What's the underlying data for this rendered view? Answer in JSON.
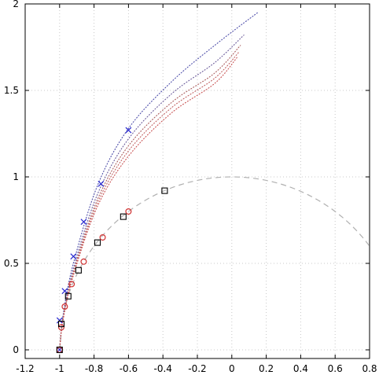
{
  "chart_data": {
    "type": "scatter",
    "title": "",
    "xlabel": "",
    "ylabel": "",
    "xlim": [
      -1.2,
      0.8
    ],
    "ylim": [
      -0.05,
      2.0
    ],
    "grid": true,
    "legend": "none",
    "x_ticks": [
      "-1.2",
      "-1",
      "-0.8",
      "-0.6",
      "-0.4",
      "-0.2",
      "0",
      "0.2",
      "0.4",
      "0.6",
      "0.8"
    ],
    "x_tick_values": [
      -1.2,
      -1.0,
      -0.8,
      -0.6,
      -0.4,
      -0.2,
      0,
      0.2,
      0.4,
      0.6,
      0.8
    ],
    "y_ticks": [
      "0",
      "0.5",
      "1",
      "1.5",
      "2"
    ],
    "y_tick_values": [
      0,
      0.5,
      1.0,
      1.5,
      2.0
    ],
    "reference_curve": {
      "kind": "semicircle",
      "center": [
        0,
        0
      ],
      "radius": 1,
      "x_from": -1.0,
      "x_to": 0.8,
      "color": "#b0b0b0",
      "style": "dashed"
    },
    "fan_curves": [
      {
        "color": "#4a4aa8",
        "points": [
          [
            -1,
            0
          ],
          [
            -0.98,
            0.2
          ],
          [
            -0.92,
            0.5
          ],
          [
            -0.78,
            0.95
          ],
          [
            -0.6,
            1.28
          ],
          [
            -0.35,
            1.55
          ],
          [
            -0.1,
            1.76
          ],
          [
            0.15,
            1.95
          ]
        ]
      },
      {
        "color": "#6a5a9a",
        "points": [
          [
            -1,
            0
          ],
          [
            -0.98,
            0.19
          ],
          [
            -0.92,
            0.47
          ],
          [
            -0.78,
            0.9
          ],
          [
            -0.6,
            1.22
          ],
          [
            -0.35,
            1.48
          ],
          [
            -0.1,
            1.66
          ],
          [
            0.07,
            1.82
          ]
        ]
      },
      {
        "color": "#a85a5a",
        "points": [
          [
            -1,
            0
          ],
          [
            -0.98,
            0.18
          ],
          [
            -0.92,
            0.45
          ],
          [
            -0.78,
            0.87
          ],
          [
            -0.6,
            1.18
          ],
          [
            -0.35,
            1.43
          ],
          [
            -0.1,
            1.6
          ],
          [
            0.05,
            1.76
          ]
        ]
      },
      {
        "color": "#c06060",
        "points": [
          [
            -1,
            0
          ],
          [
            -0.98,
            0.18
          ],
          [
            -0.92,
            0.44
          ],
          [
            -0.78,
            0.85
          ],
          [
            -0.6,
            1.15
          ],
          [
            -0.35,
            1.4
          ],
          [
            -0.1,
            1.57
          ],
          [
            0.04,
            1.72
          ]
        ]
      },
      {
        "color": "#c85050",
        "points": [
          [
            -1,
            0
          ],
          [
            -0.98,
            0.17
          ],
          [
            -0.92,
            0.43
          ],
          [
            -0.78,
            0.83
          ],
          [
            -0.6,
            1.12
          ],
          [
            -0.35,
            1.37
          ],
          [
            -0.1,
            1.54
          ],
          [
            0.03,
            1.69
          ]
        ]
      }
    ],
    "series": [
      {
        "marker": "cross",
        "color": "#2a2ad0",
        "points": [
          [
            -1,
            0
          ],
          [
            -1,
            0.17
          ],
          [
            -0.97,
            0.34
          ],
          [
            -0.92,
            0.54
          ],
          [
            -0.86,
            0.74
          ],
          [
            -0.76,
            0.96
          ],
          [
            -0.6,
            1.27
          ]
        ]
      },
      {
        "marker": "circle",
        "color": "#d03030",
        "points": [
          [
            -1,
            0
          ],
          [
            -0.99,
            0.13
          ],
          [
            -0.97,
            0.25
          ],
          [
            -0.93,
            0.38
          ],
          [
            -0.86,
            0.51
          ],
          [
            -0.75,
            0.65
          ],
          [
            -0.6,
            0.8
          ]
        ]
      },
      {
        "marker": "square",
        "color": "#000000",
        "points": [
          [
            -1,
            0
          ],
          [
            -0.99,
            0.15
          ],
          [
            -0.95,
            0.31
          ],
          [
            -0.89,
            0.46
          ],
          [
            -0.78,
            0.62
          ],
          [
            -0.63,
            0.77
          ],
          [
            -0.39,
            0.92
          ]
        ]
      }
    ]
  }
}
